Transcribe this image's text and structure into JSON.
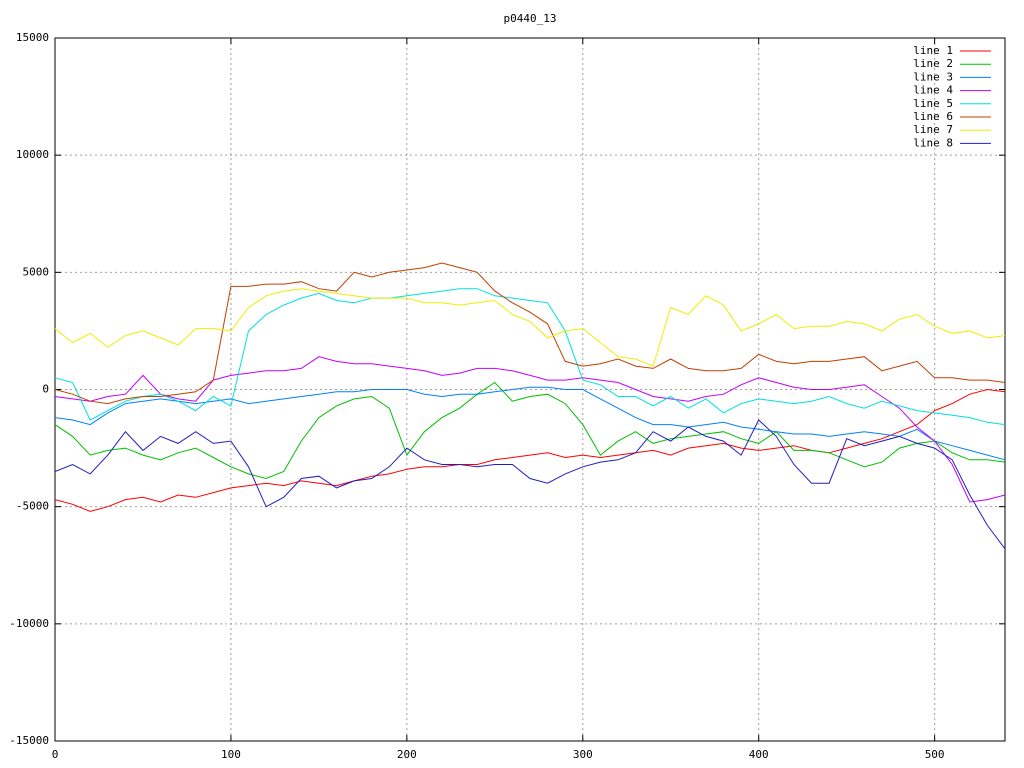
{
  "chart_data": {
    "type": "line",
    "title": "p0440_13",
    "x": [
      0,
      10,
      20,
      30,
      40,
      50,
      60,
      70,
      80,
      90,
      100,
      110,
      120,
      130,
      140,
      150,
      160,
      170,
      180,
      190,
      200,
      210,
      220,
      230,
      240,
      250,
      260,
      270,
      280,
      290,
      300,
      310,
      320,
      330,
      340,
      350,
      360,
      370,
      380,
      390,
      400,
      410,
      420,
      430,
      440,
      450,
      460,
      470,
      480,
      490,
      500,
      510,
      520,
      530,
      540
    ],
    "xlim": [
      0,
      540
    ],
    "xticks": [
      0,
      100,
      200,
      300,
      400,
      500
    ],
    "ylim": [
      -15000,
      15000
    ],
    "yticks": [
      -15000,
      -10000,
      -5000,
      0,
      5000,
      10000,
      15000
    ],
    "grid": true,
    "legend": "top-right",
    "series": [
      {
        "name": "line 1",
        "color": "#ff0000",
        "values": [
          -4700,
          -4900,
          -5200,
          -5000,
          -4700,
          -4600,
          -4800,
          -4500,
          -4600,
          -4400,
          -4200,
          -4100,
          -4000,
          -4100,
          -3900,
          -4000,
          -4100,
          -3900,
          -3700,
          -3600,
          -3400,
          -3300,
          -3300,
          -3200,
          -3200,
          -3000,
          -2900,
          -2800,
          -2700,
          -2900,
          -2800,
          -2900,
          -2800,
          -2700,
          -2600,
          -2800,
          -2500,
          -2400,
          -2300,
          -2500,
          -2600,
          -2500,
          -2400,
          -2600,
          -2700,
          -2500,
          -2300,
          -2100,
          -1800,
          -1500,
          -900,
          -600,
          -200,
          0,
          -100
        ]
      },
      {
        "name": "line 2",
        "color": "#00c000",
        "values": [
          -1500,
          -2000,
          -2800,
          -2600,
          -2500,
          -2800,
          -3000,
          -2700,
          -2500,
          -2900,
          -3300,
          -3600,
          -3800,
          -3500,
          -2200,
          -1200,
          -700,
          -400,
          -300,
          -800,
          -2800,
          -1800,
          -1200,
          -800,
          -200,
          300,
          -500,
          -300,
          -200,
          -600,
          -1500,
          -2800,
          -2200,
          -1800,
          -2300,
          -2100,
          -2000,
          -1900,
          -1800,
          -2100,
          -2300,
          -1800,
          -2600,
          -2600,
          -2700,
          -3000,
          -3300,
          -3100,
          -2500,
          -2300,
          -2200,
          -2700,
          -3000,
          -3000,
          -3100
        ]
      },
      {
        "name": "line 3",
        "color": "#0080ff",
        "values": [
          -1200,
          -1300,
          -1500,
          -1000,
          -600,
          -500,
          -400,
          -500,
          -600,
          -500,
          -400,
          -600,
          -500,
          -400,
          -300,
          -200,
          -100,
          -100,
          0,
          0,
          0,
          -200,
          -300,
          -200,
          -200,
          -100,
          0,
          100,
          100,
          0,
          0,
          -400,
          -800,
          -1200,
          -1500,
          -1500,
          -1600,
          -1500,
          -1400,
          -1600,
          -1700,
          -1800,
          -1900,
          -1900,
          -2000,
          -1900,
          -1800,
          -1900,
          -2000,
          -1700,
          -2200,
          -2400,
          -2600,
          -2800,
          -3000
        ]
      },
      {
        "name": "line 4",
        "color": "#c000ff",
        "values": [
          -300,
          -400,
          -500,
          -300,
          -200,
          600,
          -200,
          -400,
          -500,
          400,
          600,
          700,
          800,
          800,
          900,
          1400,
          1200,
          1100,
          1100,
          1000,
          900,
          800,
          600,
          700,
          900,
          900,
          800,
          600,
          400,
          400,
          500,
          400,
          300,
          0,
          -300,
          -400,
          -500,
          -300,
          -200,
          200,
          500,
          300,
          100,
          0,
          0,
          100,
          200,
          -300,
          -800,
          -1600,
          -2200,
          -3200,
          -4800,
          -4700,
          -4500
        ]
      },
      {
        "name": "line 5",
        "color": "#00e0e0",
        "values": [
          500,
          300,
          -1300,
          -900,
          -500,
          -300,
          -200,
          -500,
          -900,
          -300,
          -700,
          2500,
          3200,
          3600,
          3900,
          4100,
          3800,
          3700,
          3900,
          3900,
          4000,
          4100,
          4200,
          4300,
          4300,
          4000,
          3900,
          3800,
          3700,
          2500,
          400,
          200,
          -300,
          -300,
          -700,
          -300,
          -800,
          -400,
          -1000,
          -600,
          -400,
          -500,
          -600,
          -500,
          -300,
          -600,
          -800,
          -500,
          -700,
          -900,
          -1000,
          -1100,
          -1200,
          -1400,
          -1500
        ]
      },
      {
        "name": "line 6",
        "color": "#c04000",
        "values": [
          0,
          -200,
          -500,
          -600,
          -400,
          -300,
          -300,
          -200,
          -100,
          400,
          4400,
          4400,
          4500,
          4500,
          4600,
          4300,
          4200,
          5000,
          4800,
          5000,
          5100,
          5200,
          5400,
          5200,
          5000,
          4200,
          3700,
          3300,
          2800,
          1200,
          1000,
          1100,
          1300,
          1000,
          900,
          1300,
          900,
          800,
          800,
          900,
          1500,
          1200,
          1100,
          1200,
          1200,
          1300,
          1400,
          800,
          1000,
          1200,
          500,
          500,
          400,
          400,
          300
        ]
      },
      {
        "name": "line 7",
        "color": "#eeee00",
        "values": [
          2600,
          2000,
          2400,
          1800,
          2300,
          2500,
          2200,
          1900,
          2600,
          2600,
          2500,
          3500,
          4000,
          4200,
          4300,
          4200,
          4100,
          4000,
          3900,
          3900,
          3900,
          3700,
          3700,
          3600,
          3700,
          3800,
          3200,
          2900,
          2200,
          2500,
          2600,
          2000,
          1400,
          1300,
          1000,
          3500,
          3200,
          4000,
          3600,
          2500,
          2800,
          3200,
          2600,
          2700,
          2700,
          2900,
          2800,
          2500,
          3000,
          3200,
          2700,
          2400,
          2500,
          2200,
          2300
        ]
      },
      {
        "name": "line 8",
        "color": "#2020c0",
        "values": [
          -3500,
          -3200,
          -3600,
          -2800,
          -1800,
          -2600,
          -2000,
          -2300,
          -1800,
          -2300,
          -2200,
          -3300,
          -5000,
          -4600,
          -3800,
          -3700,
          -4200,
          -3900,
          -3800,
          -3300,
          -2500,
          -3000,
          -3200,
          -3200,
          -3300,
          -3200,
          -3200,
          -3800,
          -4000,
          -3600,
          -3300,
          -3100,
          -3000,
          -2700,
          -1800,
          -2200,
          -1600,
          -2000,
          -2200,
          -2800,
          -1300,
          -2000,
          -3200,
          -4000,
          -4000,
          -2100,
          -2400,
          -2200,
          -2000,
          -2300,
          -2500,
          -3000,
          -4500,
          -5800,
          -6800
        ]
      }
    ]
  }
}
